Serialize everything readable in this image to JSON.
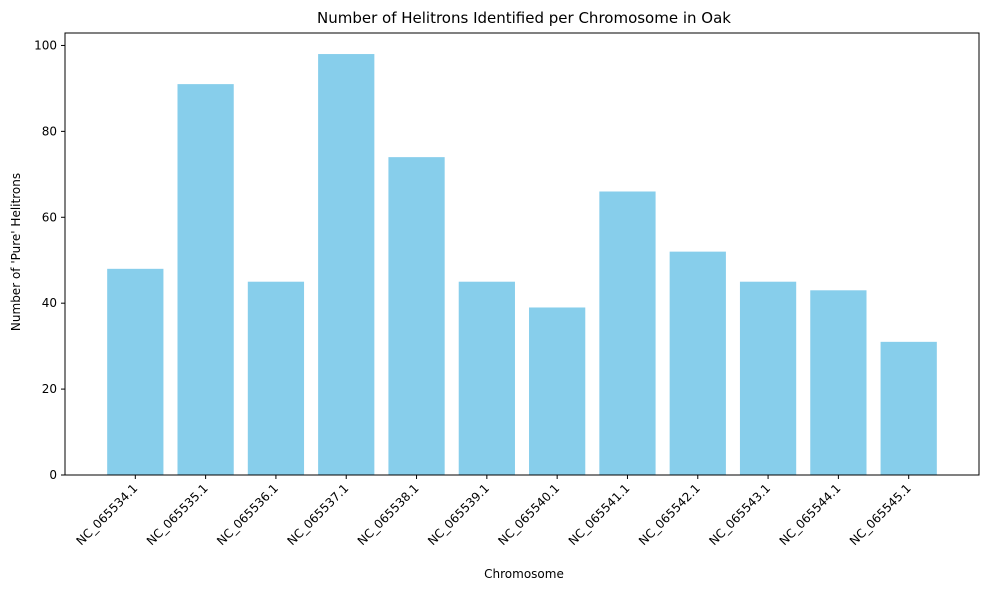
{
  "chart_data": {
    "type": "bar",
    "title": "Number of Helitrons Identified per Chromosome in Oak",
    "xlabel": "Chromosome",
    "ylabel": "Number of 'Pure' Helitrons",
    "categories": [
      "NC_065534.1",
      "NC_065535.1",
      "NC_065536.1",
      "NC_065537.1",
      "NC_065538.1",
      "NC_065539.1",
      "NC_065540.1",
      "NC_065541.1",
      "NC_065542.1",
      "NC_065543.1",
      "NC_065544.1",
      "NC_065545.1"
    ],
    "values": [
      48,
      91,
      45,
      98,
      74,
      45,
      39,
      66,
      52,
      45,
      43,
      31
    ],
    "ylim": [
      0,
      102.9
    ],
    "yticks": [
      0,
      20,
      40,
      60,
      80,
      100
    ],
    "bar_color": "#87ceeb",
    "grid": false,
    "xtick_rotation": "45 degrees, right-aligned"
  }
}
